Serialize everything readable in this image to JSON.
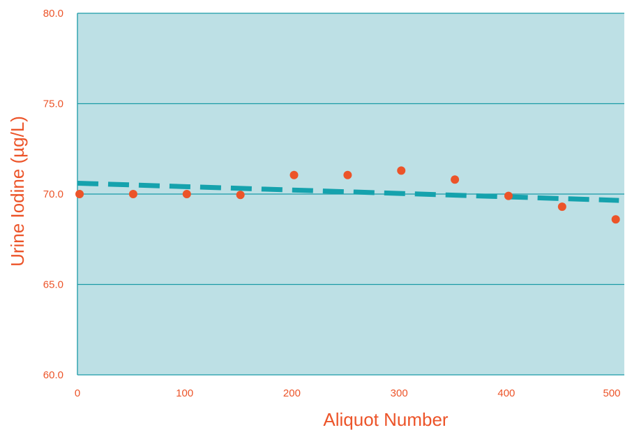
{
  "chart_data": {
    "type": "scatter",
    "title": "",
    "xlabel": "Aliquot Number",
    "ylabel": "Urine Iodine (µg/L)",
    "xlim": [
      0,
      510
    ],
    "ylim": [
      60,
      80
    ],
    "x_ticks": [
      0,
      100,
      200,
      300,
      400,
      500
    ],
    "x_tick_labels": [
      "0",
      "100",
      "200",
      "300",
      "400",
      "500"
    ],
    "y_ticks": [
      60,
      65,
      70,
      75,
      80
    ],
    "y_tick_labels": [
      "60.0",
      "65.0",
      "70.0",
      "75.0",
      "80.0"
    ],
    "grid": "horizontal",
    "legend": "none",
    "series": [
      {
        "type": "scatter",
        "x": [
          2,
          52,
          102,
          152,
          202,
          252,
          302,
          352,
          402,
          452,
          502
        ],
        "y": [
          70.0,
          70.0,
          70.0,
          69.95,
          71.05,
          71.05,
          71.3,
          70.8,
          69.9,
          69.3,
          68.6
        ]
      },
      {
        "type": "trend-line",
        "style": "dashed",
        "x": [
          0,
          505
        ],
        "y": [
          70.6,
          69.65
        ]
      }
    ],
    "colors": {
      "plot_background": "#bde0e5",
      "gridline": "#1a9aa6",
      "points": "#ec5429",
      "trend_line": "#15a2ad",
      "text": "#ec5429"
    }
  }
}
